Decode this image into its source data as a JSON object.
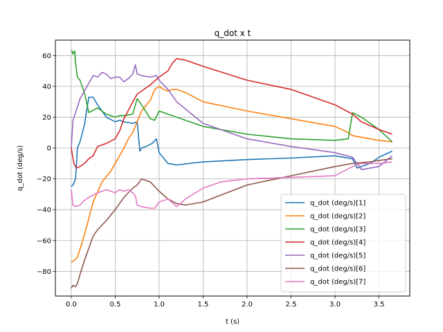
{
  "chart_data": {
    "type": "line",
    "title": "q_dot x t",
    "xlabel": "t (s)",
    "ylabel": "q_dot (deg/s)",
    "xlim": [
      -0.18,
      3.85
    ],
    "ylim": [
      -96,
      70
    ],
    "xticks": [
      0.0,
      0.5,
      1.0,
      1.5,
      2.0,
      2.5,
      3.0,
      3.5
    ],
    "xtick_labels": [
      "0.0",
      "0.5",
      "1.0",
      "1.5",
      "2.0",
      "2.5",
      "3.0",
      "3.5"
    ],
    "yticks": [
      -80,
      -60,
      -40,
      -20,
      0,
      20,
      40,
      60
    ],
    "ytick_labels": [
      "−80",
      "−60",
      "−40",
      "−20",
      "0",
      "20",
      "40",
      "60"
    ],
    "grid": true,
    "legend_position": "lower-right",
    "series": [
      {
        "name": "q_dot (deg/s)[1]",
        "color": "#1f77b4",
        "x": [
          0.0,
          0.02,
          0.05,
          0.07,
          0.1,
          0.15,
          0.2,
          0.25,
          0.3,
          0.35,
          0.4,
          0.5,
          0.55,
          0.6,
          0.7,
          0.75,
          0.78,
          0.8,
          0.85,
          0.92,
          0.97,
          1.0,
          1.1,
          1.2,
          1.5,
          2.0,
          2.5,
          3.0,
          3.2,
          3.25,
          3.4,
          3.5,
          3.65
        ],
        "y": [
          -25,
          -24,
          -20,
          0,
          4,
          15,
          33,
          33,
          28,
          24,
          20,
          17,
          18,
          17,
          16,
          17,
          -2,
          0,
          1,
          3,
          6,
          -3,
          -10,
          -11,
          -9,
          -7.5,
          -6.5,
          -5,
          -7,
          -13,
          -10,
          -6,
          -2
        ]
      },
      {
        "name": "q_dot (deg/s)[2]",
        "color": "#ff7f0e",
        "x": [
          0.0,
          0.03,
          0.07,
          0.12,
          0.18,
          0.25,
          0.35,
          0.45,
          0.5,
          0.55,
          0.6,
          0.65,
          0.7,
          0.8,
          0.9,
          0.95,
          1.0,
          1.05,
          1.1,
          1.15,
          1.2,
          1.3,
          1.5,
          2.0,
          2.5,
          3.0,
          3.15,
          3.2,
          3.4,
          3.5,
          3.65
        ],
        "y": [
          -74,
          -73,
          -71,
          -62,
          -50,
          -35,
          -22,
          -15,
          -10,
          -5,
          0,
          6,
          10,
          24,
          31,
          38,
          40,
          38,
          37,
          38,
          38,
          36,
          30,
          24,
          19,
          14,
          10,
          8,
          6,
          5,
          4
        ]
      },
      {
        "name": "q_dot (deg/s)[3]",
        "color": "#2ca02c",
        "x": [
          0.0,
          0.01,
          0.02,
          0.04,
          0.05,
          0.07,
          0.1,
          0.15,
          0.2,
          0.3,
          0.35,
          0.4,
          0.5,
          0.55,
          0.6,
          0.7,
          0.75,
          0.8,
          0.9,
          0.95,
          1.0,
          1.1,
          1.2,
          1.5,
          2.0,
          2.5,
          3.0,
          3.15,
          3.2,
          3.3,
          3.5,
          3.65
        ],
        "y": [
          63,
          63,
          61,
          63,
          55,
          46,
          44,
          36,
          23,
          26,
          24,
          22,
          20,
          21,
          21,
          22,
          32,
          28,
          19,
          18,
          24,
          22,
          20,
          14,
          9,
          6,
          5,
          6,
          23,
          20,
          12,
          4
        ]
      },
      {
        "name": "q_dot (deg/s)[4]",
        "color": "#d62728",
        "x": [
          0.0,
          0.03,
          0.06,
          0.1,
          0.15,
          0.2,
          0.25,
          0.3,
          0.35,
          0.4,
          0.5,
          0.55,
          0.6,
          0.7,
          0.75,
          0.8,
          0.9,
          1.0,
          1.1,
          1.15,
          1.2,
          1.3,
          1.5,
          2.0,
          2.5,
          3.0,
          3.2,
          3.3,
          3.5,
          3.65
        ],
        "y": [
          0,
          -10,
          -13,
          -12,
          -10,
          -7,
          -5,
          1,
          2,
          3,
          6,
          11,
          19,
          30,
          35,
          37,
          41,
          46,
          50,
          55,
          58,
          57,
          53,
          44,
          38,
          28,
          22,
          17,
          12,
          9
        ]
      },
      {
        "name": "q_dot (deg/s)[5]",
        "color": "#9467bd",
        "x": [
          0.0,
          0.02,
          0.05,
          0.1,
          0.15,
          0.2,
          0.25,
          0.3,
          0.35,
          0.4,
          0.45,
          0.5,
          0.55,
          0.6,
          0.65,
          0.7,
          0.73,
          0.75,
          0.8,
          0.9,
          0.97,
          1.0,
          1.1,
          1.2,
          1.5,
          2.0,
          2.5,
          3.0,
          3.2,
          3.3,
          3.5,
          3.65
        ],
        "y": [
          0,
          18,
          23,
          32,
          37,
          42,
          47,
          46,
          49,
          48,
          45,
          46,
          46,
          43,
          45,
          48,
          54,
          48,
          47,
          46,
          47,
          44,
          38,
          30,
          16,
          6,
          1,
          -3,
          -6,
          -14,
          -12,
          -5
        ]
      },
      {
        "name": "q_dot (deg/s)[6]",
        "color": "#8c564b",
        "x": [
          0.0,
          0.02,
          0.05,
          0.07,
          0.1,
          0.15,
          0.2,
          0.25,
          0.3,
          0.35,
          0.4,
          0.5,
          0.6,
          0.7,
          0.75,
          0.8,
          0.9,
          1.0,
          1.1,
          1.2,
          1.3,
          1.5,
          2.0,
          2.5,
          3.0,
          3.2,
          3.4,
          3.5,
          3.65
        ],
        "y": [
          -91,
          -89,
          -90,
          -88,
          -82,
          -73,
          -65,
          -57,
          -53,
          -50,
          -47,
          -40,
          -32,
          -26,
          -24,
          -20,
          -22,
          -28,
          -33,
          -36,
          -37,
          -35,
          -24,
          -18,
          -12,
          -10,
          -9,
          -8,
          -7
        ]
      },
      {
        "name": "q_dot (deg/s)[7]",
        "color": "#e377c2",
        "x": [
          0.0,
          0.02,
          0.05,
          0.1,
          0.15,
          0.2,
          0.3,
          0.4,
          0.5,
          0.55,
          0.6,
          0.65,
          0.7,
          0.73,
          0.75,
          0.8,
          0.9,
          0.95,
          1.0,
          1.1,
          1.2,
          1.3,
          1.5,
          1.7,
          2.0,
          2.5,
          3.0,
          3.2,
          3.3,
          3.5,
          3.65
        ],
        "y": [
          -27,
          -37,
          -38,
          -37,
          -34,
          -32,
          -29,
          -27,
          -29,
          -27,
          -28,
          -27,
          -29,
          -31,
          -37,
          -38,
          -39,
          -39,
          -35,
          -33,
          -38,
          -33,
          -26,
          -22,
          -20,
          -19,
          -18,
          -12,
          -10,
          -10,
          -9
        ]
      }
    ]
  }
}
